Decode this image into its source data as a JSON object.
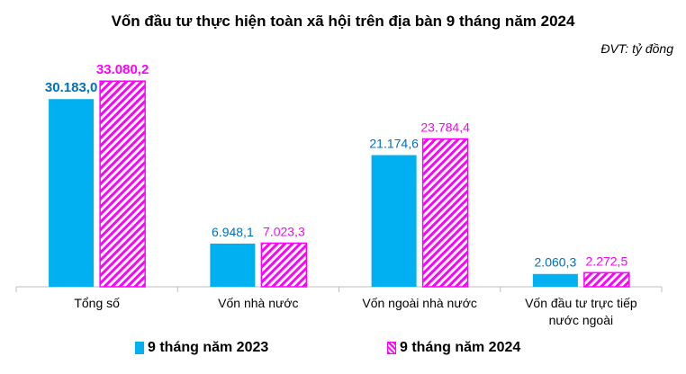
{
  "chart_data": {
    "type": "bar",
    "title": "Vốn đầu tư thực hiện toàn xã hội trên địa bàn 9 tháng năm 2024",
    "unit_note": "ĐVT: tỷ đồng",
    "categories": [
      [
        "Tổng số"
      ],
      [
        "Vốn nhà nước"
      ],
      [
        "Vốn ngoài nhà nước"
      ],
      [
        "Vốn đầu tư trực tiếp",
        "nước ngoài"
      ]
    ],
    "series": [
      {
        "name": "9 tháng năm 2023",
        "color": "#00b0f0",
        "label_color": "#0070c0",
        "pattern": "solid",
        "values": [
          30183.0,
          6948.1,
          21174.6,
          2060.3
        ],
        "labels": [
          "30.183,0",
          "6.948,1",
          "21.174,6",
          "2.060,3"
        ]
      },
      {
        "name": "9 tháng năm 2024",
        "color": "#ff00ff",
        "label_color": "#ff00ff",
        "pattern": "diagonal-hatch",
        "values": [
          33080.2,
          7023.3,
          23784.4,
          2272.5
        ],
        "labels": [
          "33.080,2",
          "7.023,3",
          "23.784,4",
          "2.272,5"
        ]
      }
    ],
    "ylim": [
      0,
      36000
    ],
    "grid": false,
    "legend_position": "bottom"
  }
}
